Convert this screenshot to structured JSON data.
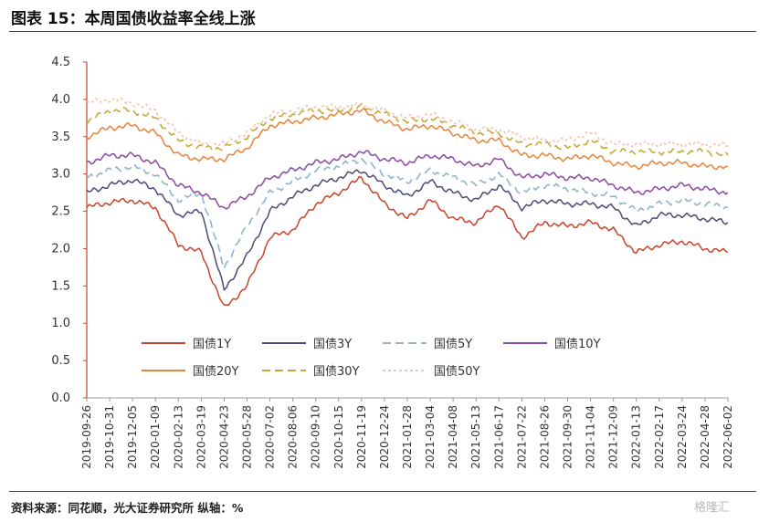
{
  "header": {
    "title": "图表 15：本周国债收益率全线上涨"
  },
  "footer": {
    "source": "资料来源：同花顺，光大证券研究所  纵轴：%",
    "watermark": "格隆汇"
  },
  "chart_data": {
    "type": "line",
    "title": "图表 15：本周国债收益率全线上涨",
    "xlabel": "",
    "ylabel": "",
    "ylim": [
      0.0,
      4.5
    ],
    "yticks": [
      "0.0",
      "0.5",
      "1.0",
      "1.5",
      "2.0",
      "2.5",
      "3.0",
      "3.5",
      "4.0",
      "4.5"
    ],
    "x": [
      "2019-09-26",
      "2019-10-31",
      "2019-12-05",
      "2020-01-09",
      "2020-02-13",
      "2020-03-19",
      "2020-04-23",
      "2020-05-28",
      "2020-07-02",
      "2020-08-06",
      "2020-09-10",
      "2020-10-15",
      "2020-11-19",
      "2020-12-24",
      "2021-01-28",
      "2021-03-04",
      "2021-04-08",
      "2021-05-13",
      "2021-06-17",
      "2021-07-22",
      "2021-08-26",
      "2021-09-30",
      "2021-11-04",
      "2021-12-09",
      "2022-01-13",
      "2022-02-17",
      "2022-03-24",
      "2022-04-28",
      "2022-06-02"
    ],
    "legend": "inside-bottom",
    "grid": false,
    "series": [
      {
        "name": "国债1Y",
        "color": "#c8442a",
        "dash": "solid",
        "values": [
          2.55,
          2.62,
          2.65,
          2.55,
          2.05,
          1.95,
          1.2,
          1.5,
          2.15,
          2.25,
          2.6,
          2.75,
          2.95,
          2.6,
          2.4,
          2.65,
          2.4,
          2.35,
          2.6,
          2.15,
          2.35,
          2.3,
          2.35,
          2.25,
          1.95,
          2.05,
          2.1,
          2.0,
          1.95
        ]
      },
      {
        "name": "国债3Y",
        "color": "#4a4a78",
        "dash": "solid",
        "values": [
          2.75,
          2.85,
          2.92,
          2.8,
          2.45,
          2.5,
          1.45,
          1.9,
          2.5,
          2.7,
          2.85,
          2.95,
          3.05,
          2.85,
          2.7,
          2.9,
          2.75,
          2.65,
          2.85,
          2.55,
          2.65,
          2.6,
          2.6,
          2.55,
          2.3,
          2.45,
          2.45,
          2.4,
          2.35
        ]
      },
      {
        "name": "国债5Y",
        "color": "#8fb4c8",
        "dash": "dashed",
        "values": [
          2.95,
          3.05,
          3.1,
          3.0,
          2.65,
          2.75,
          1.75,
          2.3,
          2.75,
          2.9,
          3.05,
          3.1,
          3.2,
          3.0,
          2.9,
          3.05,
          2.95,
          2.85,
          3.0,
          2.75,
          2.85,
          2.8,
          2.75,
          2.7,
          2.5,
          2.6,
          2.65,
          2.6,
          2.55
        ]
      },
      {
        "name": "国债10Y",
        "color": "#8a4a9e",
        "dash": "solid",
        "values": [
          3.15,
          3.25,
          3.25,
          3.15,
          2.85,
          2.75,
          2.55,
          2.7,
          2.95,
          3.05,
          3.15,
          3.2,
          3.3,
          3.2,
          3.15,
          3.25,
          3.2,
          3.1,
          3.2,
          2.95,
          3.0,
          2.95,
          2.95,
          2.85,
          2.75,
          2.8,
          2.85,
          2.8,
          2.75
        ]
      },
      {
        "name": "国债20Y",
        "color": "#e8843a",
        "dash": "solid",
        "values": [
          3.5,
          3.62,
          3.65,
          3.55,
          3.25,
          3.2,
          3.2,
          3.35,
          3.65,
          3.7,
          3.75,
          3.8,
          3.85,
          3.7,
          3.6,
          3.65,
          3.55,
          3.45,
          3.45,
          3.25,
          3.25,
          3.2,
          3.25,
          3.15,
          3.1,
          3.15,
          3.15,
          3.1,
          3.1
        ]
      },
      {
        "name": "国债30Y",
        "color": "#c9a838",
        "dash": "dashed",
        "values": [
          3.7,
          3.85,
          3.85,
          3.75,
          3.45,
          3.35,
          3.35,
          3.5,
          3.75,
          3.8,
          3.85,
          3.85,
          3.9,
          3.8,
          3.7,
          3.75,
          3.65,
          3.55,
          3.55,
          3.4,
          3.4,
          3.35,
          3.45,
          3.3,
          3.3,
          3.3,
          3.3,
          3.3,
          3.25
        ]
      },
      {
        "name": "国债50Y",
        "color": "#f0c4b0",
        "dash": "dotted",
        "values": [
          3.95,
          4.0,
          3.95,
          3.85,
          3.55,
          3.4,
          3.4,
          3.55,
          3.8,
          3.85,
          3.9,
          3.9,
          3.92,
          3.85,
          3.75,
          3.8,
          3.7,
          3.6,
          3.6,
          3.5,
          3.45,
          3.45,
          3.55,
          3.4,
          3.4,
          3.4,
          3.4,
          3.4,
          3.38
        ]
      }
    ]
  }
}
